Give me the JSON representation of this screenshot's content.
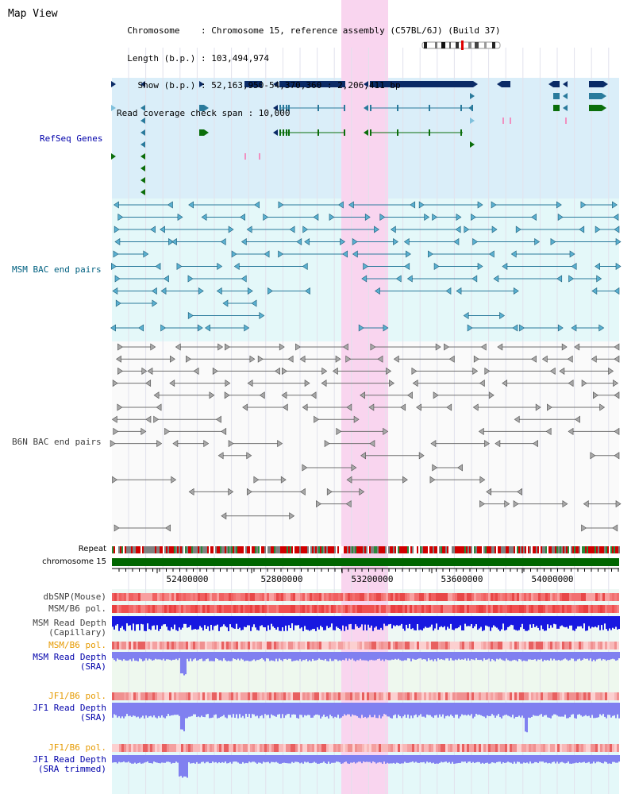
{
  "view_title": "Map View",
  "header": {
    "lines": [
      "  Chromosome    : Chromosome 15, reference assembly (C57BL/6J) (Build 37)",
      "  Length (b.p.) : 103,494,974",
      "    Show (b.p.) : 52,163,950-54,370,360 : 2,206,411 bp",
      "Read coverage check span : 10,000"
    ]
  },
  "tracks": {
    "refseq": "RefSeq Genes",
    "msm_bac": "MSM BAC end pairs",
    "b6n_bac": "B6N BAC end pairs",
    "repeat": "Repeat",
    "chromosome": "chromosome 15",
    "dbsnp": "dbSNP(Mouse)",
    "msm_b6_pol_1": "MSM/B6 pol.",
    "msm_depth_cap": "MSM Read Depth\n(Capillary)",
    "msm_b6_pol_2": "MSM/B6 pol.",
    "msm_depth_sra": "MSM Read Depth\n(SRA)",
    "jf1_b6_pol_1": "JF1/B6 pol.",
    "jf1_depth_sra": "JF1 Read Depth\n(SRA)",
    "jf1_b6_pol_2": "JF1/B6 pol.",
    "jf1_depth_trim": "JF1 Read Depth\n(SRA trimmed)"
  },
  "axis": {
    "ticks": [
      "52400000",
      "52800000",
      "53200000",
      "53600000",
      "54000000"
    ]
  },
  "colors": {
    "refseq_bg": "#daeef9",
    "msm_bg": "#e4f8f9",
    "b6n_bg": "#ffffff",
    "highlight": "#f9d5ef",
    "refseq_label": "#0000aa",
    "msm_label": "#006080",
    "b6n_label": "#404040",
    "orange_label": "#e69a00",
    "navy": "#0a2a66",
    "teal": "#2a7a9c",
    "green": "#0b6e0b",
    "chromosome_bar": "#006600",
    "depth_blue": "#1818e0",
    "depth_lavender": "#8080f0"
  }
}
